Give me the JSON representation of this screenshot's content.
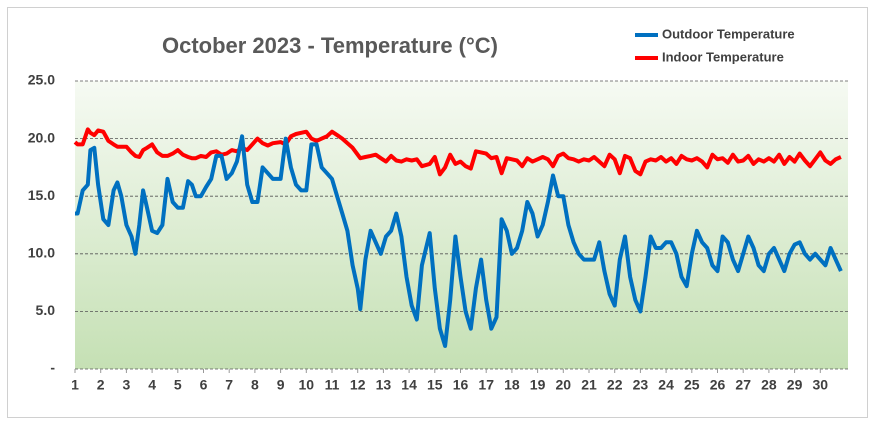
{
  "chart_data": {
    "type": "line",
    "title": "October 2023 - Temperature (°C)",
    "x": [
      1.0,
      1.1,
      1.3,
      1.5,
      1.6,
      1.75,
      1.9,
      2.1,
      2.3,
      2.5,
      2.65,
      2.8,
      3.0,
      3.2,
      3.35,
      3.5,
      3.65,
      3.8,
      4.0,
      4.2,
      4.4,
      4.6,
      4.8,
      5.0,
      5.2,
      5.4,
      5.55,
      5.7,
      5.9,
      6.1,
      6.3,
      6.5,
      6.7,
      6.9,
      7.1,
      7.3,
      7.5,
      7.7,
      7.9,
      8.1,
      8.3,
      8.5,
      8.7,
      9.0,
      9.2,
      9.4,
      9.6,
      9.8,
      10.0,
      10.2,
      10.4,
      10.6,
      10.8,
      11.0,
      11.2,
      11.4,
      11.6,
      11.8,
      12.0,
      12.1,
      12.3,
      12.5,
      12.7,
      12.9,
      13.1,
      13.3,
      13.5,
      13.7,
      13.9,
      14.1,
      14.3,
      14.5,
      14.8,
      15.0,
      15.2,
      15.4,
      15.6,
      15.8,
      16.0,
      16.2,
      16.4,
      16.6,
      16.8,
      17.0,
      17.2,
      17.4,
      17.6,
      17.8,
      18.0,
      18.2,
      18.4,
      18.6,
      18.8,
      19.0,
      19.2,
      19.4,
      19.6,
      19.8,
      20.0,
      20.2,
      20.4,
      20.6,
      20.8,
      21.0,
      21.2,
      21.4,
      21.6,
      21.8,
      22.0,
      22.2,
      22.4,
      22.6,
      22.8,
      23.0,
      23.2,
      23.4,
      23.6,
      23.8,
      24.0,
      24.2,
      24.4,
      24.6,
      24.8,
      25.0,
      25.2,
      25.4,
      25.6,
      25.8,
      26.0,
      26.2,
      26.4,
      26.6,
      26.8,
      27.0,
      27.2,
      27.4,
      27.6,
      27.8,
      28.0,
      28.2,
      28.4,
      28.6,
      28.8,
      29.0,
      29.2,
      29.4,
      29.6,
      29.8,
      30.0,
      30.2,
      30.4,
      30.6,
      30.8
    ],
    "series": [
      {
        "name": "Outdoor Temperature",
        "color": "#0070c0",
        "values": [
          13.5,
          13.5,
          15.5,
          16,
          19,
          19.2,
          16,
          13,
          12.5,
          15.5,
          16.2,
          15,
          12.5,
          11.5,
          10,
          12.5,
          15.5,
          14,
          12,
          11.8,
          12.5,
          16.5,
          14.5,
          14,
          14,
          16.3,
          16,
          15,
          15,
          15.8,
          16.5,
          18.5,
          18.5,
          16.5,
          17,
          18,
          20.2,
          16,
          14.5,
          14.5,
          17.5,
          17,
          16.5,
          16.5,
          20,
          17.5,
          16,
          15.5,
          15.5,
          19.5,
          19.5,
          17.5,
          17,
          16.5,
          15,
          13.5,
          12,
          9,
          7,
          5.2,
          9.5,
          12,
          11,
          10,
          11.5,
          12,
          13.5,
          11.5,
          8,
          5.5,
          4.3,
          9,
          11.8,
          7,
          3.5,
          2,
          6,
          11.5,
          8,
          5,
          3.5,
          7,
          9.5,
          6,
          3.5,
          4.5,
          13,
          12,
          10,
          10.5,
          12,
          14.5,
          13.5,
          11.5,
          12.5,
          14.5,
          16.8,
          15,
          15,
          12.5,
          11,
          10,
          9.5,
          9.5,
          9.5,
          11,
          8.5,
          6.5,
          5.5,
          9.5,
          11.5,
          8,
          6,
          5,
          8,
          11.5,
          10.5,
          10.5,
          11,
          11,
          10,
          8,
          7.2,
          10,
          12,
          11,
          10.5,
          9,
          8.5,
          11.5,
          11,
          9.5,
          8.5,
          10,
          11.5,
          10.5,
          9,
          8.5,
          10,
          10.5,
          9.5,
          8.5,
          10,
          10.8,
          11,
          10,
          9.5,
          10,
          9.5,
          9,
          10.5,
          9.5,
          8.5
        ]
      },
      {
        "name": "Indoor Temperature",
        "color": "#ff0000",
        "values": [
          19.7,
          19.5,
          19.5,
          20.8,
          20.5,
          20.3,
          20.7,
          20.6,
          19.8,
          19.5,
          19.3,
          19.3,
          19.3,
          18.8,
          18.5,
          18.4,
          19.0,
          19.2,
          19.5,
          18.8,
          18.5,
          18.5,
          18.7,
          19.0,
          18.6,
          18.4,
          18.3,
          18.3,
          18.5,
          18.4,
          18.8,
          18.9,
          18.6,
          18.7,
          19.0,
          18.9,
          19.2,
          19.0,
          19.5,
          20.0,
          19.6,
          19.4,
          19.6,
          19.7,
          19.5,
          20.2,
          20.4,
          20.5,
          20.6,
          20.0,
          19.8,
          20.0,
          20.2,
          20.6,
          20.3,
          20.0,
          19.6,
          19.2,
          18.6,
          18.3,
          18.4,
          18.5,
          18.6,
          18.3,
          18.0,
          18.5,
          18.1,
          18.0,
          18.2,
          18.1,
          18.2,
          17.6,
          17.8,
          18.4,
          16.9,
          17.5,
          18.6,
          17.8,
          18.0,
          17.6,
          17.4,
          18.9,
          18.8,
          18.7,
          18.3,
          18.4,
          17.0,
          18.3,
          18.2,
          18.1,
          17.6,
          18.3,
          18.0,
          18.2,
          18.4,
          18.2,
          17.6,
          18.5,
          18.7,
          18.3,
          18.2,
          18.0,
          18.2,
          18.1,
          18.4,
          18.0,
          17.6,
          18.6,
          18.2,
          17.0,
          18.5,
          18.3,
          17.2,
          16.9,
          18.0,
          18.2,
          18.1,
          18.4,
          18.0,
          18.3,
          17.8,
          18.5,
          18.2,
          18.1,
          18.3,
          18.0,
          17.5,
          18.6,
          18.2,
          18.3,
          17.9,
          18.6,
          18.0,
          18.1,
          18.5,
          17.8,
          18.2,
          18.0,
          18.3,
          18.0,
          18.6,
          17.8,
          18.4,
          18.0,
          18.7,
          18.1,
          17.6,
          18.2,
          18.8,
          18.1,
          17.8,
          18.2,
          18.4
        ]
      }
    ],
    "xlim": [
      1,
      31
    ],
    "xticks": [
      1,
      2,
      3,
      4,
      5,
      6,
      7,
      8,
      9,
      10,
      11,
      12,
      13,
      14,
      15,
      16,
      17,
      18,
      19,
      20,
      21,
      22,
      23,
      24,
      25,
      26,
      27,
      28,
      29,
      30
    ],
    "ylim": [
      0,
      25
    ],
    "yticks": [
      {
        "value": 0,
        "label": "-"
      },
      {
        "value": 5,
        "label": "5.0"
      },
      {
        "value": 10,
        "label": "10.0"
      },
      {
        "value": 15,
        "label": "15.0"
      },
      {
        "value": 20,
        "label": "20.0"
      },
      {
        "value": 25,
        "label": "25.0"
      }
    ],
    "grid": true,
    "legend": "top-right"
  }
}
